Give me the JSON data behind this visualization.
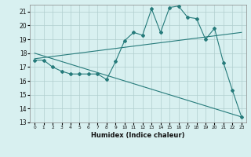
{
  "title": "",
  "xlabel": "Humidex (Indice chaleur)",
  "bg_color": "#d8f0f0",
  "grid_color": "#b0cece",
  "line_color": "#267b7b",
  "xlim": [
    -0.5,
    23.5
  ],
  "ylim": [
    13,
    21.5
  ],
  "yticks": [
    13,
    14,
    15,
    16,
    17,
    18,
    19,
    20,
    21
  ],
  "xticks": [
    0,
    1,
    2,
    3,
    4,
    5,
    6,
    7,
    8,
    9,
    10,
    11,
    12,
    13,
    14,
    15,
    16,
    17,
    18,
    19,
    20,
    21,
    22,
    23
  ],
  "line1_x": [
    0,
    1,
    2,
    3,
    4,
    5,
    6,
    7,
    8,
    9,
    10,
    11,
    12,
    13,
    14,
    15,
    16,
    17,
    18,
    19,
    20,
    21,
    22,
    23
  ],
  "line1_y": [
    17.5,
    17.5,
    17.0,
    16.7,
    16.5,
    16.5,
    16.5,
    16.5,
    16.1,
    17.4,
    18.9,
    19.5,
    19.3,
    21.2,
    19.5,
    21.3,
    21.4,
    20.6,
    20.5,
    19.0,
    19.8,
    17.3,
    15.3,
    13.4
  ],
  "line2_x": [
    0,
    23
  ],
  "line2_y": [
    17.6,
    19.5
  ],
  "line3_x": [
    0,
    23
  ],
  "line3_y": [
    18.0,
    13.4
  ]
}
